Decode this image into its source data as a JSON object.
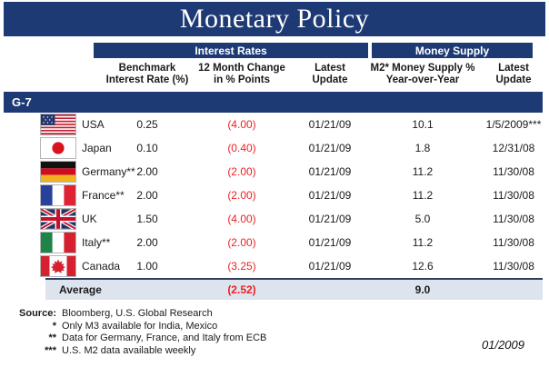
{
  "title": "Monetary Policy",
  "sections": {
    "interest_rates": "Interest Rates",
    "money_supply": "Money Supply"
  },
  "columns": {
    "benchmark": {
      "line1": "Benchmark",
      "line2": "Interest Rate (%)"
    },
    "change": {
      "line1": "12 Month Change",
      "line2": "in % Points"
    },
    "latest1": {
      "line1": "Latest",
      "line2": "Update"
    },
    "m2": {
      "line1": "M2* Money Supply %",
      "line2": "Year-over-Year"
    },
    "latest2": {
      "line1": "Latest",
      "line2": "Update"
    }
  },
  "group_label": "G-7",
  "table": {
    "rows": [
      {
        "country": "USA",
        "flag": "us",
        "benchmark": "0.25",
        "change": "(4.00)",
        "rate_update": "01/21/09",
        "m2": "10.1",
        "m2_update": "1/5/2009***"
      },
      {
        "country": "Japan",
        "flag": "jp",
        "benchmark": "0.10",
        "change": "(0.40)",
        "rate_update": "01/21/09",
        "m2": "1.8",
        "m2_update": "12/31/08"
      },
      {
        "country": "Germany**",
        "flag": "de",
        "benchmark": "2.00",
        "change": "(2.00)",
        "rate_update": "01/21/09",
        "m2": "11.2",
        "m2_update": "11/30/08"
      },
      {
        "country": "France**",
        "flag": "fr",
        "benchmark": "2.00",
        "change": "(2.00)",
        "rate_update": "01/21/09",
        "m2": "11.2",
        "m2_update": "11/30/08"
      },
      {
        "country": "UK",
        "flag": "uk",
        "benchmark": "1.50",
        "change": "(4.00)",
        "rate_update": "01/21/09",
        "m2": "5.0",
        "m2_update": "11/30/08"
      },
      {
        "country": "Italy**",
        "flag": "it",
        "benchmark": "2.00",
        "change": "(2.00)",
        "rate_update": "01/21/09",
        "m2": "11.2",
        "m2_update": "11/30/08"
      },
      {
        "country": "Canada",
        "flag": "ca",
        "benchmark": "1.00",
        "change": "(3.25)",
        "rate_update": "01/21/09",
        "m2": "12.6",
        "m2_update": "11/30/08"
      }
    ],
    "average": {
      "label": "Average",
      "change": "(2.52)",
      "m2": "9.0"
    }
  },
  "footnotes": [
    {
      "marker": "Source:",
      "text": "Bloomberg, U.S. Global Research"
    },
    {
      "marker": "*",
      "text": "Only M3 available for India, Mexico"
    },
    {
      "marker": "**",
      "text": "Data for Germany, France, and Italy from ECB"
    },
    {
      "marker": "***",
      "text": "U.S. M2 data available weekly"
    }
  ],
  "date_stamp": "01/2009",
  "colors": {
    "navy": "#1e3a74",
    "negative_red": "#ed2024",
    "average_row_bg": "#dde4ee"
  }
}
